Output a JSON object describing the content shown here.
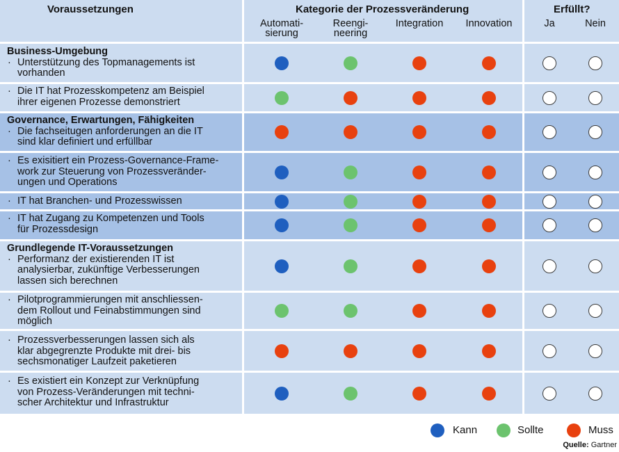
{
  "header": {
    "requirements": "Voraussetzungen",
    "category": "Kategorie der Prozessveränderung",
    "fulfilled": "Erfüllt?",
    "columns": [
      "Automati-\nsierung",
      "Reengi-\nneering",
      "Integration",
      "Innovation"
    ],
    "yes": "Ja",
    "no": "Nein"
  },
  "colors": {
    "kann": "#1f5fbf",
    "sollte": "#6cc36e",
    "muss": "#e8410f",
    "light_band": "#ccdcf0",
    "dark_band": "#a6c1e6"
  },
  "rows": [
    {
      "group": "Business-Umgebung",
      "text": "Unterstützung des Topmanagements ist\nvorhanden",
      "ratings": [
        "kann",
        "sollte",
        "muss",
        "muss"
      ],
      "band": "light"
    },
    {
      "group": "",
      "text": "Die IT hat Prozesskompetenz am Beispiel\nihrer eigenen Prozesse demonstriert",
      "ratings": [
        "sollte",
        "muss",
        "muss",
        "muss"
      ],
      "band": "light"
    },
    {
      "group": "Governance, Erwartungen, Fähigkeiten",
      "text": "Die fachseitugen anforderungen an die IT\nsind klar definiert und erfüllbar",
      "ratings": [
        "muss",
        "muss",
        "muss",
        "muss"
      ],
      "band": "dark"
    },
    {
      "group": "",
      "text": "Es exisitiert ein Prozess-Governance-Frame-\nwork zur Steuerung von Prozessveränder-\nungen und Operations",
      "ratings": [
        "kann",
        "sollte",
        "muss",
        "muss"
      ],
      "band": "dark"
    },
    {
      "group": "",
      "text": "IT hat Branchen- und Prozesswissen",
      "ratings": [
        "kann",
        "sollte",
        "muss",
        "muss"
      ],
      "band": "dark"
    },
    {
      "group": "",
      "text": "IT hat Zugang zu Kompetenzen und Tools\nfür Prozessdesign",
      "ratings": [
        "kann",
        "sollte",
        "muss",
        "muss"
      ],
      "band": "dark"
    },
    {
      "group": "Grundlegende IT-Voraussetzungen",
      "text": "Performanz der existierenden IT ist\nanalysierbar, zukünftige Verbesserungen\nlassen sich berechnen",
      "ratings": [
        "kann",
        "sollte",
        "muss",
        "muss"
      ],
      "band": "light"
    },
    {
      "group": "",
      "text": "Pilotprogrammierungen mit anschliessen-\ndem Rollout und Feinabstimmungen sind\nmöglich",
      "ratings": [
        "sollte",
        "sollte",
        "muss",
        "muss"
      ],
      "band": "light"
    },
    {
      "group": "",
      "text": "Prozessverbesserungen lassen sich als\nklar abgegrenzte Produkte mit drei- bis\nsechsmonatiger Laufzeit paketieren",
      "ratings": [
        "muss",
        "muss",
        "muss",
        "muss"
      ],
      "band": "light"
    },
    {
      "group": "",
      "text": "Es existiert ein Konzept zur Verknüpfung\nvon Prozess-Veränderungen mit techni-\nscher Architektur und Infrastruktur",
      "ratings": [
        "kann",
        "sollte",
        "muss",
        "muss"
      ],
      "band": "light"
    }
  ],
  "legend": [
    {
      "key": "kann",
      "label": "Kann"
    },
    {
      "key": "sollte",
      "label": "Sollte"
    },
    {
      "key": "muss",
      "label": "Muss"
    }
  ],
  "source": {
    "label": "Quelle:",
    "value": "Gartner"
  }
}
